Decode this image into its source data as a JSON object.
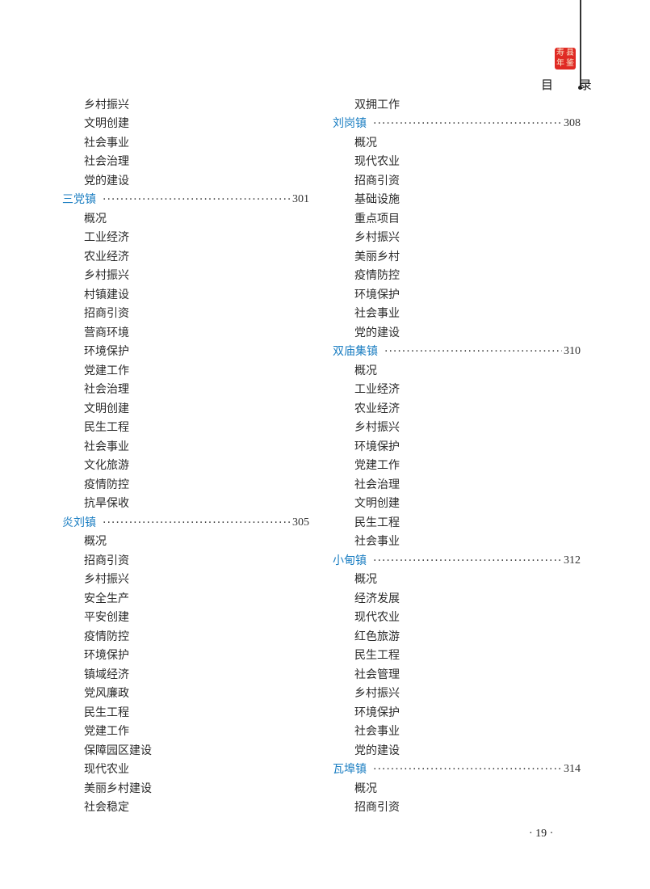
{
  "header": {
    "title": "目 录",
    "seal_text": "寿县年鉴"
  },
  "columns": [
    [
      {
        "t": "乡村振兴"
      },
      {
        "t": "文明创建"
      },
      {
        "t": "社会事业"
      },
      {
        "t": "社会治理"
      },
      {
        "t": "党的建设"
      },
      {
        "t": "三党镇",
        "page": "301",
        "head": true
      },
      {
        "t": "概况"
      },
      {
        "t": "工业经济"
      },
      {
        "t": "农业经济"
      },
      {
        "t": "乡村振兴"
      },
      {
        "t": "村镇建设"
      },
      {
        "t": "招商引资"
      },
      {
        "t": "营商环境"
      },
      {
        "t": "环境保护"
      },
      {
        "t": "党建工作"
      },
      {
        "t": "社会治理"
      },
      {
        "t": "文明创建"
      },
      {
        "t": "民生工程"
      },
      {
        "t": "社会事业"
      },
      {
        "t": "文化旅游"
      },
      {
        "t": "疫情防控"
      },
      {
        "t": "抗旱保收"
      },
      {
        "t": "炎刘镇",
        "page": "305",
        "head": true
      },
      {
        "t": "概况"
      },
      {
        "t": "招商引资"
      },
      {
        "t": "乡村振兴"
      },
      {
        "t": "安全生产"
      },
      {
        "t": "平安创建"
      },
      {
        "t": "疫情防控"
      },
      {
        "t": "环境保护"
      },
      {
        "t": "镇域经济"
      },
      {
        "t": "党风廉政"
      },
      {
        "t": "民生工程"
      },
      {
        "t": "党建工作"
      },
      {
        "t": "保障园区建设"
      },
      {
        "t": "现代农业"
      },
      {
        "t": "美丽乡村建设"
      },
      {
        "t": "社会稳定"
      }
    ],
    [
      {
        "t": "双拥工作"
      },
      {
        "t": "刘岗镇",
        "page": "308",
        "head": true
      },
      {
        "t": "概况"
      },
      {
        "t": "现代农业"
      },
      {
        "t": "招商引资"
      },
      {
        "t": "基础设施"
      },
      {
        "t": "重点项目"
      },
      {
        "t": "乡村振兴"
      },
      {
        "t": "美丽乡村"
      },
      {
        "t": "疫情防控"
      },
      {
        "t": "环境保护"
      },
      {
        "t": "社会事业"
      },
      {
        "t": "党的建设"
      },
      {
        "t": "双庙集镇",
        "page": "310",
        "head": true
      },
      {
        "t": "概况"
      },
      {
        "t": "工业经济"
      },
      {
        "t": "农业经济"
      },
      {
        "t": "乡村振兴"
      },
      {
        "t": "环境保护"
      },
      {
        "t": "党建工作"
      },
      {
        "t": "社会治理"
      },
      {
        "t": "文明创建"
      },
      {
        "t": "民生工程"
      },
      {
        "t": "社会事业"
      },
      {
        "t": "小甸镇",
        "page": "312",
        "head": true
      },
      {
        "t": "概况"
      },
      {
        "t": "经济发展"
      },
      {
        "t": "现代农业"
      },
      {
        "t": "红色旅游"
      },
      {
        "t": "民生工程"
      },
      {
        "t": "社会管理"
      },
      {
        "t": "乡村振兴"
      },
      {
        "t": "环境保护"
      },
      {
        "t": "社会事业"
      },
      {
        "t": "党的建设"
      },
      {
        "t": "瓦埠镇",
        "page": "314",
        "head": true
      },
      {
        "t": "概况"
      },
      {
        "t": "招商引资"
      }
    ]
  ],
  "footer": {
    "page_number": "· 19 ·"
  },
  "colors": {
    "heading": "#1b7ec2",
    "seal": "#e02a24"
  }
}
